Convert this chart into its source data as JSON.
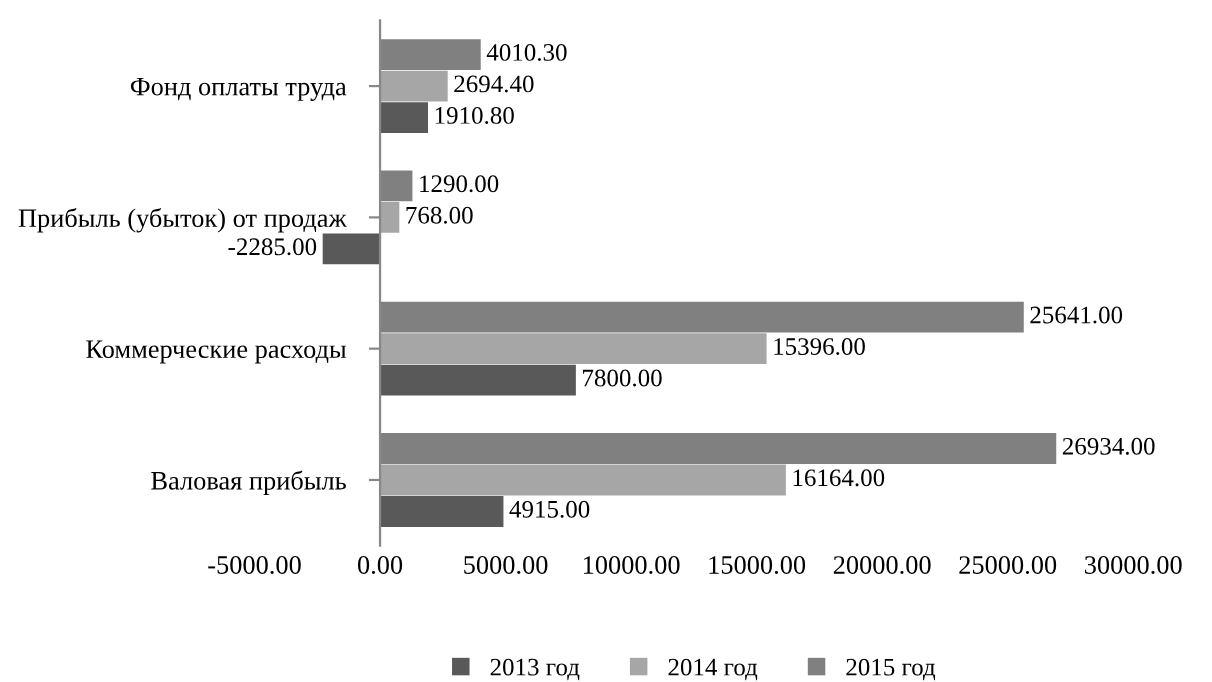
{
  "chart_data": {
    "type": "bar",
    "orientation": "horizontal",
    "categories": [
      "Фонд оплаты труда",
      "Прибыль (убыток) от продаж",
      "Коммерческие расходы",
      "Валовая прибыль"
    ],
    "series": [
      {
        "name": "2013 год",
        "color": "#595959",
        "values": [
          1910.8,
          -2285.0,
          7800.0,
          4915.0
        ],
        "value_labels": [
          "1910.80",
          "-2285.00",
          "7800.00",
          "4915.00"
        ]
      },
      {
        "name": "2014 год",
        "color": "#a6a6a6",
        "values": [
          2694.4,
          768.0,
          15396.0,
          16164.0
        ],
        "value_labels": [
          "2694.40",
          "768.00",
          "15396.00",
          "16164.00"
        ]
      },
      {
        "name": "2015 год",
        "color": "#808080",
        "values": [
          4010.3,
          1290.0,
          25641.0,
          26934.0
        ],
        "value_labels": [
          "4010.30",
          "1290.00",
          "25641.00",
          "26934.00"
        ]
      }
    ],
    "xlim": [
      -5000,
      30000
    ],
    "xticks": [
      {
        "value": -5000,
        "label": "-5000.00"
      },
      {
        "value": 0,
        "label": "0.00"
      },
      {
        "value": 5000,
        "label": "5000.00"
      },
      {
        "value": 10000,
        "label": "10000.00"
      },
      {
        "value": 15000,
        "label": "15000.00"
      },
      {
        "value": 20000,
        "label": "20000.00"
      },
      {
        "value": 25000,
        "label": "25000.00"
      },
      {
        "value": 30000,
        "label": "30000.00"
      }
    ],
    "legend": "bottom"
  }
}
